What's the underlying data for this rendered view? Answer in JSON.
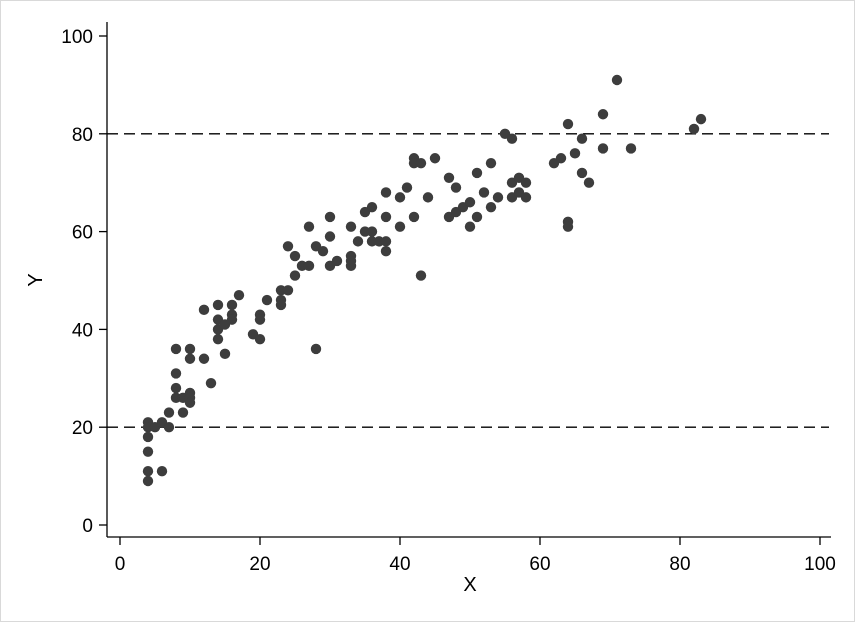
{
  "chart_data": {
    "type": "scatter",
    "title": "",
    "xlabel": "X",
    "ylabel": "Y",
    "xlim": [
      0,
      100
    ],
    "ylim": [
      0,
      100
    ],
    "xticks": [
      0,
      20,
      40,
      60,
      80,
      100
    ],
    "yticks": [
      0,
      20,
      40,
      60,
      80,
      100
    ],
    "xtick_labels": [
      "0",
      "20",
      "40",
      "60",
      "80",
      "100"
    ],
    "ytick_labels": [
      "0",
      "20",
      "40",
      "60",
      "80",
      "100"
    ],
    "grid": false,
    "reference_lines": [
      {
        "axis": "y",
        "value": 80,
        "style": "dashed"
      },
      {
        "axis": "y",
        "value": 20,
        "style": "dashed"
      }
    ],
    "marker_color": "#3d3d3d",
    "series": [
      {
        "points": [
          [
            4,
            21
          ],
          [
            4,
            20
          ],
          [
            4,
            18
          ],
          [
            4,
            15
          ],
          [
            4,
            11
          ],
          [
            4,
            9
          ],
          [
            5,
            20
          ],
          [
            6,
            21
          ],
          [
            6,
            11
          ],
          [
            7,
            23
          ],
          [
            7,
            20
          ],
          [
            8,
            36
          ],
          [
            8,
            31
          ],
          [
            8,
            28
          ],
          [
            8,
            26
          ],
          [
            9,
            26
          ],
          [
            9,
            23
          ],
          [
            10,
            36
          ],
          [
            10,
            34
          ],
          [
            10,
            27
          ],
          [
            10,
            26
          ],
          [
            10,
            25
          ],
          [
            12,
            44
          ],
          [
            12,
            34
          ],
          [
            13,
            29
          ],
          [
            14,
            45
          ],
          [
            14,
            42
          ],
          [
            14,
            40
          ],
          [
            14,
            38
          ],
          [
            15,
            41
          ],
          [
            15,
            35
          ],
          [
            16,
            45
          ],
          [
            16,
            43
          ],
          [
            16,
            42
          ],
          [
            17,
            47
          ],
          [
            19,
            39
          ],
          [
            20,
            43
          ],
          [
            20,
            42
          ],
          [
            20,
            38
          ],
          [
            21,
            46
          ],
          [
            23,
            48
          ],
          [
            23,
            46
          ],
          [
            23,
            45
          ],
          [
            24,
            57
          ],
          [
            24,
            48
          ],
          [
            25,
            55
          ],
          [
            25,
            51
          ],
          [
            26,
            53
          ],
          [
            27,
            61
          ],
          [
            27,
            53
          ],
          [
            28,
            57
          ],
          [
            28,
            36
          ],
          [
            29,
            56
          ],
          [
            30,
            63
          ],
          [
            30,
            59
          ],
          [
            30,
            53
          ],
          [
            31,
            54
          ],
          [
            33,
            61
          ],
          [
            33,
            55
          ],
          [
            33,
            54
          ],
          [
            33,
            53
          ],
          [
            34,
            58
          ],
          [
            35,
            64
          ],
          [
            35,
            60
          ],
          [
            36,
            65
          ],
          [
            36,
            60
          ],
          [
            36,
            58
          ],
          [
            37,
            58
          ],
          [
            38,
            68
          ],
          [
            38,
            63
          ],
          [
            38,
            58
          ],
          [
            38,
            56
          ],
          [
            40,
            67
          ],
          [
            40,
            61
          ],
          [
            41,
            69
          ],
          [
            42,
            75
          ],
          [
            42,
            74
          ],
          [
            42,
            63
          ],
          [
            43,
            74
          ],
          [
            43,
            51
          ],
          [
            44,
            67
          ],
          [
            45,
            75
          ],
          [
            47,
            71
          ],
          [
            47,
            63
          ],
          [
            48,
            69
          ],
          [
            48,
            64
          ],
          [
            49,
            65
          ],
          [
            50,
            66
          ],
          [
            50,
            61
          ],
          [
            51,
            72
          ],
          [
            51,
            63
          ],
          [
            52,
            68
          ],
          [
            53,
            74
          ],
          [
            53,
            65
          ],
          [
            54,
            67
          ],
          [
            55,
            80
          ],
          [
            56,
            79
          ],
          [
            56,
            70
          ],
          [
            56,
            67
          ],
          [
            57,
            71
          ],
          [
            57,
            68
          ],
          [
            58,
            70
          ],
          [
            58,
            67
          ],
          [
            62,
            74
          ],
          [
            63,
            75
          ],
          [
            64,
            82
          ],
          [
            64,
            62
          ],
          [
            64,
            61
          ],
          [
            65,
            76
          ],
          [
            66,
            79
          ],
          [
            66,
            72
          ],
          [
            67,
            70
          ],
          [
            69,
            84
          ],
          [
            69,
            77
          ],
          [
            71,
            91
          ],
          [
            73,
            77
          ],
          [
            82,
            81
          ],
          [
            83,
            83
          ]
        ]
      }
    ]
  }
}
